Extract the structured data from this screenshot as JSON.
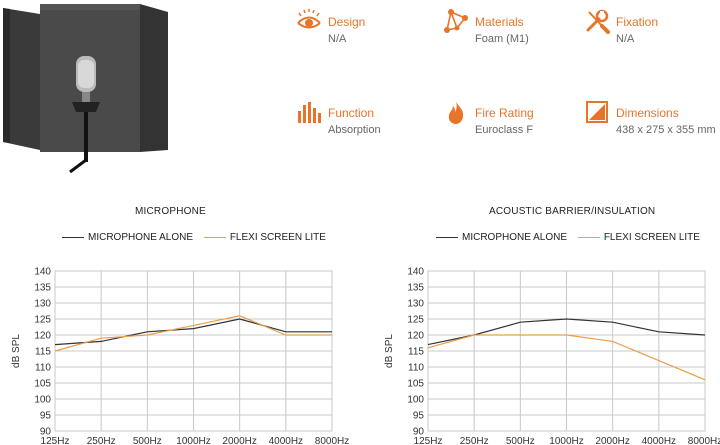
{
  "specs": [
    {
      "label": "Design",
      "value": "N/A",
      "icon": "eye-icon"
    },
    {
      "label": "Materials",
      "value": "Foam (M1)",
      "icon": "molecule-icon"
    },
    {
      "label": "Fixation",
      "value": "N/A",
      "icon": "wrench-screwdriver-icon"
    },
    {
      "label": "Function",
      "value": "Absorption",
      "icon": "equalizer-icon"
    },
    {
      "label": "Fire Rating",
      "value": "Euroclass F",
      "icon": "flame-icon"
    },
    {
      "label": "Dimensions",
      "value": "438 x 275 x 355 mm",
      "icon": "dimensions-icon"
    }
  ],
  "colors": {
    "accent": "#e8742a",
    "series_dark": "#333333",
    "series_orange": "#e8a04a",
    "grid": "#c8c8c8"
  },
  "chart_data": [
    {
      "type": "line",
      "title": "MICROPHONE",
      "ylabel": "dB SPL",
      "xlabel": "",
      "categories": [
        "125Hz",
        "250Hz",
        "500Hz",
        "1000Hz",
        "2000Hz",
        "4000Hz",
        "8000Hz"
      ],
      "yticks": [
        90,
        95,
        100,
        105,
        110,
        115,
        120,
        125,
        130,
        135,
        140
      ],
      "ylim": [
        90,
        140
      ],
      "grid": true,
      "legend": "top",
      "series": [
        {
          "name": "MICROPHONE ALONE",
          "color": "#333333",
          "values": [
            117,
            118,
            121,
            122,
            125,
            121,
            121
          ]
        },
        {
          "name": "FLEXI SCREEN LITE",
          "color": "#e8a04a",
          "values": [
            115,
            119,
            120,
            123,
            126,
            120,
            120
          ]
        }
      ]
    },
    {
      "type": "line",
      "title": "ACOUSTIC BARRIER/INSULATION",
      "ylabel": "dB SPL",
      "xlabel": "",
      "categories": [
        "125Hz",
        "250Hz",
        "500Hz",
        "1000Hz",
        "2000Hz",
        "4000Hz",
        "8000Hz"
      ],
      "yticks": [
        90,
        95,
        100,
        105,
        110,
        115,
        120,
        125,
        130,
        135,
        140
      ],
      "ylim": [
        90,
        140
      ],
      "grid": true,
      "legend": "top",
      "series": [
        {
          "name": "MICROPHONE ALONE",
          "color": "#333333",
          "values": [
            117,
            120,
            124,
            125,
            124,
            121,
            120
          ]
        },
        {
          "name": "FLEXI SCREEN LITE",
          "color": "#e8a04a",
          "values": [
            116,
            120,
            120,
            120,
            118,
            112,
            106
          ]
        }
      ]
    }
  ]
}
